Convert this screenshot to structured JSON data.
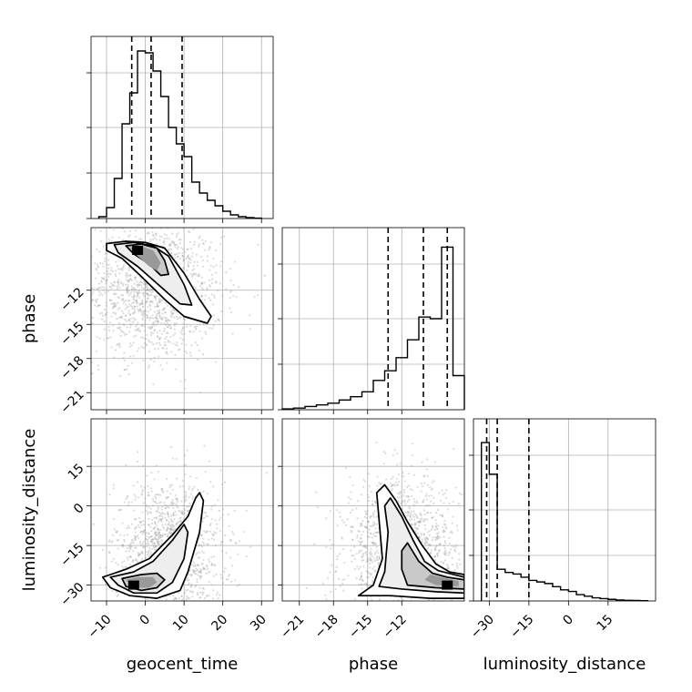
{
  "chart_data": {
    "type": "corner",
    "parameters": [
      "geocent_time",
      "phase",
      "luminosity_distance"
    ],
    "grid": true,
    "quantile_line_style": "dashed",
    "axes": {
      "geocent_time": {
        "label": "geocent_time",
        "range": [
          -14,
          33
        ],
        "ticks": [
          -10,
          0,
          10,
          20,
          30
        ],
        "tick_labels": [
          "−10",
          "0",
          "10",
          "20",
          "30"
        ]
      },
      "phase": {
        "label": "phase",
        "range": [
          -22.5,
          -6.5
        ],
        "ticks": [
          -21,
          -18,
          -15,
          -12
        ],
        "tick_labels": [
          "−21",
          "−18",
          "−15",
          "−12"
        ]
      },
      "luminosity_distance": {
        "label": "luminosity_distance",
        "range": [
          -36,
          33
        ],
        "ticks": [
          -30,
          -15,
          0,
          15
        ],
        "tick_labels": [
          "−30",
          "−15",
          "0",
          "15"
        ]
      }
    },
    "marginals": {
      "geocent_time": {
        "bin_edges": [
          -12,
          -10,
          -8,
          -6,
          -4,
          -2,
          0,
          2,
          4,
          6,
          8,
          10,
          12,
          14,
          16,
          18,
          20,
          22,
          24,
          26,
          28,
          30
        ],
        "counts": [
          1,
          6,
          22,
          52,
          69,
          92,
          91,
          81,
          67,
          50,
          41,
          34,
          20,
          14,
          10,
          7,
          4,
          2,
          1,
          0.5,
          0.2
        ],
        "peak": 100,
        "quantiles": [
          -3.5,
          1.5,
          9.5
        ]
      },
      "phase": {
        "bin_edges": [
          -22.5,
          -21.5,
          -20.5,
          -19.5,
          -18.5,
          -17.5,
          -16.5,
          -15.5,
          -14.5,
          -13.5,
          -12.5,
          -11.5,
          -10.5,
          -9.5,
          -8.5,
          -7.5,
          -6.5
        ],
        "counts": [
          0.5,
          1,
          2,
          3,
          4,
          6,
          8,
          11,
          18,
          24,
          32,
          43,
          57,
          56,
          100,
          21
        ],
        "peak": 112,
        "quantiles": [
          -13.2,
          -10.1,
          -8.0
        ]
      },
      "luminosity_distance": {
        "bin_edges": [
          -33,
          -30,
          -27,
          -24,
          -21,
          -18,
          -15,
          -12,
          -9,
          -6,
          -3,
          0,
          3,
          6,
          9,
          12,
          15,
          18,
          21,
          24,
          27,
          30
        ],
        "counts": [
          100,
          80,
          20,
          18,
          17,
          15,
          13,
          12,
          11,
          9,
          7,
          6,
          4,
          3,
          2,
          1.5,
          1,
          0.6,
          0.4,
          0.3,
          0.2
        ],
        "peak": 115,
        "quantiles": [
          -31,
          -27,
          -15
        ]
      }
    },
    "pairs": [
      {
        "x": "geocent_time",
        "y": "phase",
        "mode": [
          -2,
          -8.5
        ],
        "contours": [
          [
            [
              -10,
              -7.9
            ],
            [
              -5,
              -7.7
            ],
            [
              0,
              -7.8
            ],
            [
              5,
              -8.3
            ],
            [
              10,
              -10.5
            ],
            [
              14,
              -12.8
            ],
            [
              17,
              -14.3
            ],
            [
              16,
              -14.9
            ],
            [
              10,
              -14.3
            ],
            [
              5,
              -12.8
            ],
            [
              -1,
              -10.8
            ],
            [
              -6,
              -9.2
            ],
            [
              -10,
              -8.5
            ]
          ],
          [
            [
              -8,
              -8.0
            ],
            [
              -3,
              -7.8
            ],
            [
              2,
              -8.1
            ],
            [
              6,
              -9.0
            ],
            [
              10,
              -11.5
            ],
            [
              12,
              -13.3
            ],
            [
              9,
              -13.2
            ],
            [
              3,
              -11.4
            ],
            [
              -2,
              -9.9
            ],
            [
              -7,
              -8.7
            ]
          ],
          [
            [
              -5,
              -8.1
            ],
            [
              -1,
              -7.95
            ],
            [
              3,
              -8.3
            ],
            [
              5,
              -9.4
            ],
            [
              6,
              -10.6
            ],
            [
              4,
              -10.7
            ],
            [
              1,
              -9.7
            ],
            [
              -3,
              -8.8
            ]
          ],
          [
            [
              -4,
              -8.25
            ],
            [
              -1,
              -8.15
            ],
            [
              2,
              -8.5
            ],
            [
              4,
              -9.6
            ],
            [
              3,
              -10.3
            ],
            [
              1,
              -9.9
            ],
            [
              -2,
              -9.0
            ]
          ]
        ],
        "scatter_center": [
          2,
          -12
        ],
        "scatter_spread": [
          9,
          3
        ]
      },
      {
        "x": "geocent_time",
        "y": "luminosity_distance",
        "mode": [
          -3,
          -30
        ],
        "contours": [
          [
            [
              -11,
              -27
            ],
            [
              -5,
              -24
            ],
            [
              1,
              -20
            ],
            [
              7,
              -11
            ],
            [
              11,
              -4
            ],
            [
              13,
              3
            ],
            [
              14,
              5
            ],
            [
              15,
              2
            ],
            [
              14,
              -10
            ],
            [
              11,
              -25
            ],
            [
              9,
              -32
            ],
            [
              3,
              -35
            ],
            [
              -4,
              -34
            ],
            [
              -9,
              -31
            ]
          ],
          [
            [
              -9,
              -27
            ],
            [
              -3,
              -25
            ],
            [
              2,
              -21
            ],
            [
              7,
              -13
            ],
            [
              10,
              -7
            ],
            [
              11,
              -10
            ],
            [
              10,
              -20
            ],
            [
              7,
              -29
            ],
            [
              3,
              -33
            ],
            [
              -3,
              -33
            ],
            [
              -7,
              -30
            ]
          ],
          [
            [
              -6,
              -27.5
            ],
            [
              -1,
              -26
            ],
            [
              3,
              -25.5
            ],
            [
              5,
              -28
            ],
            [
              3,
              -31
            ],
            [
              -1,
              -32
            ],
            [
              -5,
              -30.5
            ]
          ],
          [
            [
              -5,
              -28
            ],
            [
              -2,
              -27
            ],
            [
              2,
              -27
            ],
            [
              3,
              -29
            ],
            [
              1,
              -31
            ],
            [
              -3,
              -31
            ]
          ]
        ],
        "scatter_center": [
          6,
          -18
        ],
        "scatter_spread": [
          7,
          14
        ]
      },
      {
        "x": "phase",
        "y": "luminosity_distance",
        "mode": [
          -8,
          -30
        ],
        "contours": [
          [
            [
              -13.5,
              8
            ],
            [
              -12.5,
              2
            ],
            [
              -11.5,
              -6
            ],
            [
              -10.2,
              -15
            ],
            [
              -9,
              -22
            ],
            [
              -7.8,
              -25
            ],
            [
              -6.5,
              -26
            ],
            [
              -6.5,
              -35
            ],
            [
              -9.5,
              -35
            ],
            [
              -13,
              -34
            ],
            [
              -15.8,
              -34
            ],
            [
              -14.5,
              -30
            ],
            [
              -13.7,
              -20
            ],
            [
              -14.0,
              -5
            ],
            [
              -14.2,
              5
            ]
          ],
          [
            [
              -13,
              3
            ],
            [
              -12,
              -4
            ],
            [
              -11,
              -13
            ],
            [
              -10,
              -21
            ],
            [
              -8.8,
              -24.5
            ],
            [
              -7.4,
              -26
            ],
            [
              -6.5,
              -27
            ],
            [
              -6.5,
              -33
            ],
            [
              -9,
              -32.5
            ],
            [
              -12,
              -31.5
            ],
            [
              -14,
              -30.5
            ],
            [
              -13.5,
              -25
            ],
            [
              -13.2,
              -10
            ],
            [
              -13.5,
              0
            ]
          ],
          [
            [
              -11.5,
              -14
            ],
            [
              -10.5,
              -21
            ],
            [
              -9.3,
              -25.5
            ],
            [
              -8,
              -27
            ],
            [
              -6.5,
              -28
            ],
            [
              -6.5,
              -31.5
            ],
            [
              -9,
              -31
            ],
            [
              -11.5,
              -30
            ],
            [
              -12,
              -24
            ],
            [
              -12,
              -17
            ]
          ],
          [
            [
              -9.5,
              -26
            ],
            [
              -8,
              -27.5
            ],
            [
              -7,
              -28.5
            ],
            [
              -7,
              -30.5
            ],
            [
              -9,
              -30
            ],
            [
              -10,
              -28
            ]
          ]
        ],
        "scatter_center": [
          -12,
          -18
        ],
        "scatter_spread": [
          2.5,
          14
        ]
      }
    ]
  }
}
